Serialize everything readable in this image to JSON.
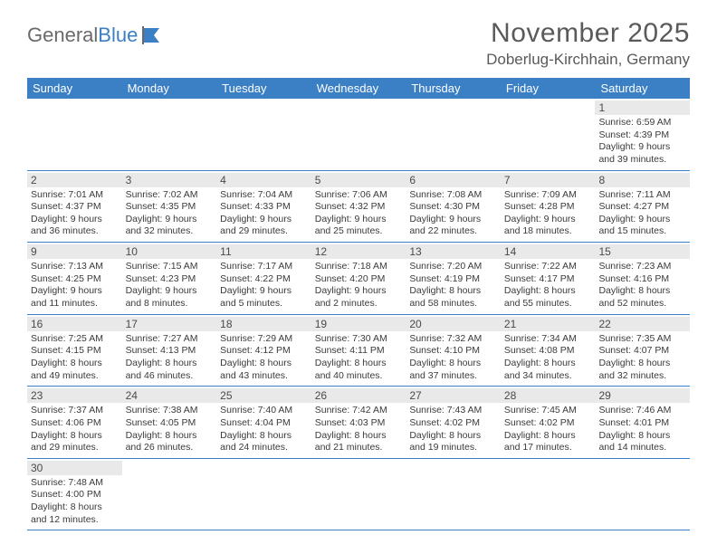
{
  "logo": {
    "textGeneral": "General",
    "textBlue": "Blue"
  },
  "title": "November 2025",
  "location": "Doberlug-Kirchhain, Germany",
  "colors": {
    "headerBg": "#3b7fc4",
    "headerText": "#ffffff",
    "dayNumBg": "#e9e9e9",
    "rowBorder": "#3b7fc4",
    "bodyText": "#3a3a3a",
    "titleText": "#5a5a5a"
  },
  "daysOfWeek": [
    "Sunday",
    "Monday",
    "Tuesday",
    "Wednesday",
    "Thursday",
    "Friday",
    "Saturday"
  ],
  "weeks": [
    [
      null,
      null,
      null,
      null,
      null,
      null,
      {
        "n": "1",
        "sunrise": "6:59 AM",
        "sunset": "4:39 PM",
        "daylight": "9 hours and 39 minutes."
      }
    ],
    [
      {
        "n": "2",
        "sunrise": "7:01 AM",
        "sunset": "4:37 PM",
        "daylight": "9 hours and 36 minutes."
      },
      {
        "n": "3",
        "sunrise": "7:02 AM",
        "sunset": "4:35 PM",
        "daylight": "9 hours and 32 minutes."
      },
      {
        "n": "4",
        "sunrise": "7:04 AM",
        "sunset": "4:33 PM",
        "daylight": "9 hours and 29 minutes."
      },
      {
        "n": "5",
        "sunrise": "7:06 AM",
        "sunset": "4:32 PM",
        "daylight": "9 hours and 25 minutes."
      },
      {
        "n": "6",
        "sunrise": "7:08 AM",
        "sunset": "4:30 PM",
        "daylight": "9 hours and 22 minutes."
      },
      {
        "n": "7",
        "sunrise": "7:09 AM",
        "sunset": "4:28 PM",
        "daylight": "9 hours and 18 minutes."
      },
      {
        "n": "8",
        "sunrise": "7:11 AM",
        "sunset": "4:27 PM",
        "daylight": "9 hours and 15 minutes."
      }
    ],
    [
      {
        "n": "9",
        "sunrise": "7:13 AM",
        "sunset": "4:25 PM",
        "daylight": "9 hours and 11 minutes."
      },
      {
        "n": "10",
        "sunrise": "7:15 AM",
        "sunset": "4:23 PM",
        "daylight": "9 hours and 8 minutes."
      },
      {
        "n": "11",
        "sunrise": "7:17 AM",
        "sunset": "4:22 PM",
        "daylight": "9 hours and 5 minutes."
      },
      {
        "n": "12",
        "sunrise": "7:18 AM",
        "sunset": "4:20 PM",
        "daylight": "9 hours and 2 minutes."
      },
      {
        "n": "13",
        "sunrise": "7:20 AM",
        "sunset": "4:19 PM",
        "daylight": "8 hours and 58 minutes."
      },
      {
        "n": "14",
        "sunrise": "7:22 AM",
        "sunset": "4:17 PM",
        "daylight": "8 hours and 55 minutes."
      },
      {
        "n": "15",
        "sunrise": "7:23 AM",
        "sunset": "4:16 PM",
        "daylight": "8 hours and 52 minutes."
      }
    ],
    [
      {
        "n": "16",
        "sunrise": "7:25 AM",
        "sunset": "4:15 PM",
        "daylight": "8 hours and 49 minutes."
      },
      {
        "n": "17",
        "sunrise": "7:27 AM",
        "sunset": "4:13 PM",
        "daylight": "8 hours and 46 minutes."
      },
      {
        "n": "18",
        "sunrise": "7:29 AM",
        "sunset": "4:12 PM",
        "daylight": "8 hours and 43 minutes."
      },
      {
        "n": "19",
        "sunrise": "7:30 AM",
        "sunset": "4:11 PM",
        "daylight": "8 hours and 40 minutes."
      },
      {
        "n": "20",
        "sunrise": "7:32 AM",
        "sunset": "4:10 PM",
        "daylight": "8 hours and 37 minutes."
      },
      {
        "n": "21",
        "sunrise": "7:34 AM",
        "sunset": "4:08 PM",
        "daylight": "8 hours and 34 minutes."
      },
      {
        "n": "22",
        "sunrise": "7:35 AM",
        "sunset": "4:07 PM",
        "daylight": "8 hours and 32 minutes."
      }
    ],
    [
      {
        "n": "23",
        "sunrise": "7:37 AM",
        "sunset": "4:06 PM",
        "daylight": "8 hours and 29 minutes."
      },
      {
        "n": "24",
        "sunrise": "7:38 AM",
        "sunset": "4:05 PM",
        "daylight": "8 hours and 26 minutes."
      },
      {
        "n": "25",
        "sunrise": "7:40 AM",
        "sunset": "4:04 PM",
        "daylight": "8 hours and 24 minutes."
      },
      {
        "n": "26",
        "sunrise": "7:42 AM",
        "sunset": "4:03 PM",
        "daylight": "8 hours and 21 minutes."
      },
      {
        "n": "27",
        "sunrise": "7:43 AM",
        "sunset": "4:02 PM",
        "daylight": "8 hours and 19 minutes."
      },
      {
        "n": "28",
        "sunrise": "7:45 AM",
        "sunset": "4:02 PM",
        "daylight": "8 hours and 17 minutes."
      },
      {
        "n": "29",
        "sunrise": "7:46 AM",
        "sunset": "4:01 PM",
        "daylight": "8 hours and 14 minutes."
      }
    ],
    [
      {
        "n": "30",
        "sunrise": "7:48 AM",
        "sunset": "4:00 PM",
        "daylight": "8 hours and 12 minutes."
      },
      null,
      null,
      null,
      null,
      null,
      null
    ]
  ]
}
